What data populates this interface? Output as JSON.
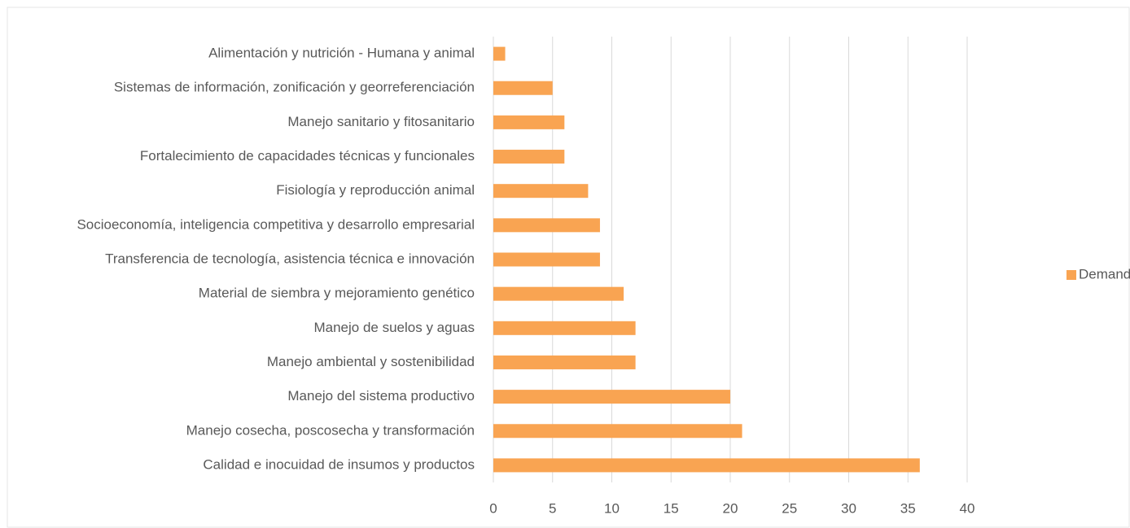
{
  "chart_data": {
    "type": "bar",
    "orientation": "horizontal",
    "categories": [
      "Alimentación y nutrición - Humana y animal",
      "Sistemas de información, zonificación y georreferenciación",
      "Manejo sanitario y fitosanitario",
      "Fortalecimiento de capacidades técnicas y funcionales",
      "Fisiología y reproducción animal",
      "Socioeconomía, inteligencia competitiva y desarrollo empresarial",
      "Transferencia de tecnología, asistencia técnica e innovación",
      "Material de siembra y mejoramiento genético",
      "Manejo de suelos y aguas",
      "Manejo ambiental y sostenibilidad",
      "Manejo del sistema productivo",
      "Manejo cosecha, poscosecha y transformación",
      "Calidad e inocuidad de insumos y productos"
    ],
    "series": [
      {
        "name": "Demandas",
        "color": "#f9a452",
        "values": [
          1,
          5,
          6,
          6,
          8,
          9,
          9,
          11,
          12,
          12,
          20,
          21,
          36
        ]
      }
    ],
    "xlim": [
      0,
      40
    ],
    "xticks": [
      0,
      5,
      10,
      15,
      20,
      25,
      30,
      35,
      40
    ],
    "grid": true,
    "legend": "right"
  }
}
